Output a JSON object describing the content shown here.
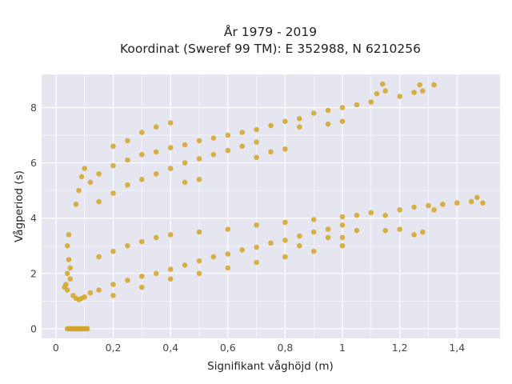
{
  "chart_data": {
    "type": "scatter",
    "title_lines": [
      "År 1979 - 2019",
      "Koordinat (Sweref 99 TM): E 352988, N 6210256"
    ],
    "xlabel": "Signifikant våghöjd (m)",
    "ylabel": "Vågperiod (s)",
    "xlim": [
      -0.05,
      1.55
    ],
    "ylim": [
      -0.35,
      9.2
    ],
    "x_ticks": [
      0,
      0.2,
      0.4,
      0.6,
      0.8,
      1,
      1.2,
      1.4
    ],
    "x_tick_labels": [
      "0",
      "0,2",
      "0,4",
      "0,6",
      "0,8",
      "1",
      "1,2",
      "1,4"
    ],
    "y_ticks": [
      0,
      2,
      4,
      6,
      8
    ],
    "y_tick_labels": [
      "0",
      "2",
      "4",
      "6",
      "8"
    ],
    "grid": true,
    "colors": {
      "marker": "#d4a526",
      "plot_background": "#e5e6f0",
      "grid": "#ffffff"
    },
    "series": [
      {
        "marker_color": "#d4a526",
        "points": [
          [
            0.04,
            0
          ],
          [
            0.045,
            0
          ],
          [
            0.05,
            0
          ],
          [
            0.055,
            0
          ],
          [
            0.06,
            0
          ],
          [
            0.065,
            0
          ],
          [
            0.07,
            0
          ],
          [
            0.075,
            0
          ],
          [
            0.08,
            0
          ],
          [
            0.085,
            0
          ],
          [
            0.09,
            0
          ],
          [
            0.095,
            0
          ],
          [
            0.1,
            0
          ],
          [
            0.105,
            0
          ],
          [
            0.11,
            0
          ],
          [
            0.03,
            1.5
          ],
          [
            0.035,
            1.6
          ],
          [
            0.04,
            1.4
          ],
          [
            0.05,
            1.8
          ],
          [
            0.06,
            1.2
          ],
          [
            0.07,
            1.1
          ],
          [
            0.08,
            1.05
          ],
          [
            0.09,
            1.1
          ],
          [
            0.1,
            1.15
          ],
          [
            0.12,
            1.3
          ],
          [
            0.04,
            2.0
          ],
          [
            0.045,
            2.5
          ],
          [
            0.04,
            3.0
          ],
          [
            0.045,
            3.4
          ],
          [
            0.05,
            2.2
          ],
          [
            0.15,
            1.4
          ],
          [
            0.2,
            1.6
          ],
          [
            0.25,
            1.75
          ],
          [
            0.3,
            1.9
          ],
          [
            0.35,
            2.0
          ],
          [
            0.4,
            2.15
          ],
          [
            0.45,
            2.3
          ],
          [
            0.5,
            2.45
          ],
          [
            0.55,
            2.6
          ],
          [
            0.6,
            2.7
          ],
          [
            0.65,
            2.85
          ],
          [
            0.7,
            2.95
          ],
          [
            0.75,
            3.1
          ],
          [
            0.8,
            3.2
          ],
          [
            0.85,
            3.35
          ],
          [
            0.9,
            3.5
          ],
          [
            0.95,
            3.6
          ],
          [
            1.0,
            3.75
          ],
          [
            0.15,
            2.6
          ],
          [
            0.2,
            2.8
          ],
          [
            0.25,
            3.0
          ],
          [
            0.3,
            3.15
          ],
          [
            0.35,
            3.3
          ],
          [
            0.4,
            3.4
          ],
          [
            0.5,
            3.5
          ],
          [
            0.6,
            3.6
          ],
          [
            0.7,
            3.75
          ],
          [
            0.8,
            3.85
          ],
          [
            0.9,
            3.95
          ],
          [
            1.0,
            4.05
          ],
          [
            1.05,
            4.1
          ],
          [
            1.1,
            4.2
          ],
          [
            1.15,
            4.1
          ],
          [
            1.2,
            4.3
          ],
          [
            1.25,
            4.4
          ],
          [
            1.3,
            4.45
          ],
          [
            1.32,
            4.3
          ],
          [
            1.35,
            4.5
          ],
          [
            1.4,
            4.55
          ],
          [
            1.45,
            4.6
          ],
          [
            1.47,
            4.75
          ],
          [
            1.49,
            4.55
          ],
          [
            1.28,
            3.5
          ],
          [
            1.25,
            3.4
          ],
          [
            1.2,
            3.6
          ],
          [
            1.15,
            3.55
          ],
          [
            1.05,
            3.55
          ],
          [
            0.07,
            4.5
          ],
          [
            0.08,
            5.0
          ],
          [
            0.09,
            5.5
          ],
          [
            0.1,
            5.8
          ],
          [
            0.12,
            5.3
          ],
          [
            0.15,
            5.6
          ],
          [
            0.2,
            5.9
          ],
          [
            0.25,
            6.1
          ],
          [
            0.3,
            6.3
          ],
          [
            0.35,
            6.4
          ],
          [
            0.4,
            6.55
          ],
          [
            0.45,
            6.65
          ],
          [
            0.5,
            6.8
          ],
          [
            0.55,
            6.9
          ],
          [
            0.6,
            7.0
          ],
          [
            0.65,
            7.1
          ],
          [
            0.7,
            7.2
          ],
          [
            0.75,
            7.35
          ],
          [
            0.8,
            7.5
          ],
          [
            0.85,
            7.6
          ],
          [
            0.15,
            4.6
          ],
          [
            0.2,
            4.9
          ],
          [
            0.25,
            5.2
          ],
          [
            0.3,
            5.4
          ],
          [
            0.35,
            5.6
          ],
          [
            0.4,
            5.8
          ],
          [
            0.45,
            6.0
          ],
          [
            0.5,
            6.15
          ],
          [
            0.55,
            6.3
          ],
          [
            0.6,
            6.45
          ],
          [
            0.65,
            6.6
          ],
          [
            0.7,
            6.75
          ],
          [
            0.9,
            7.8
          ],
          [
            0.95,
            7.9
          ],
          [
            1.0,
            8.0
          ],
          [
            1.05,
            8.1
          ],
          [
            1.1,
            8.2
          ],
          [
            1.12,
            8.5
          ],
          [
            1.15,
            8.6
          ],
          [
            1.14,
            8.85
          ],
          [
            1.2,
            8.4
          ],
          [
            1.25,
            8.55
          ],
          [
            1.27,
            8.82
          ],
          [
            1.32,
            8.82
          ],
          [
            1.28,
            8.6
          ],
          [
            1.0,
            7.5
          ],
          [
            0.95,
            7.4
          ],
          [
            0.85,
            7.3
          ],
          [
            0.35,
            7.3
          ],
          [
            0.4,
            7.45
          ],
          [
            0.3,
            7.1
          ],
          [
            0.25,
            6.8
          ],
          [
            0.2,
            6.6
          ],
          [
            0.7,
            6.2
          ],
          [
            0.75,
            6.4
          ],
          [
            0.8,
            6.5
          ],
          [
            0.5,
            5.4
          ],
          [
            0.45,
            5.3
          ],
          [
            0.2,
            1.2
          ],
          [
            0.3,
            1.5
          ],
          [
            0.4,
            1.8
          ],
          [
            0.5,
            2.0
          ],
          [
            0.6,
            2.2
          ],
          [
            0.7,
            2.4
          ],
          [
            0.8,
            2.6
          ],
          [
            0.9,
            2.8
          ],
          [
            1.0,
            3.0
          ],
          [
            0.95,
            3.3
          ],
          [
            1.0,
            3.3
          ],
          [
            0.85,
            3.0
          ]
        ]
      }
    ]
  }
}
